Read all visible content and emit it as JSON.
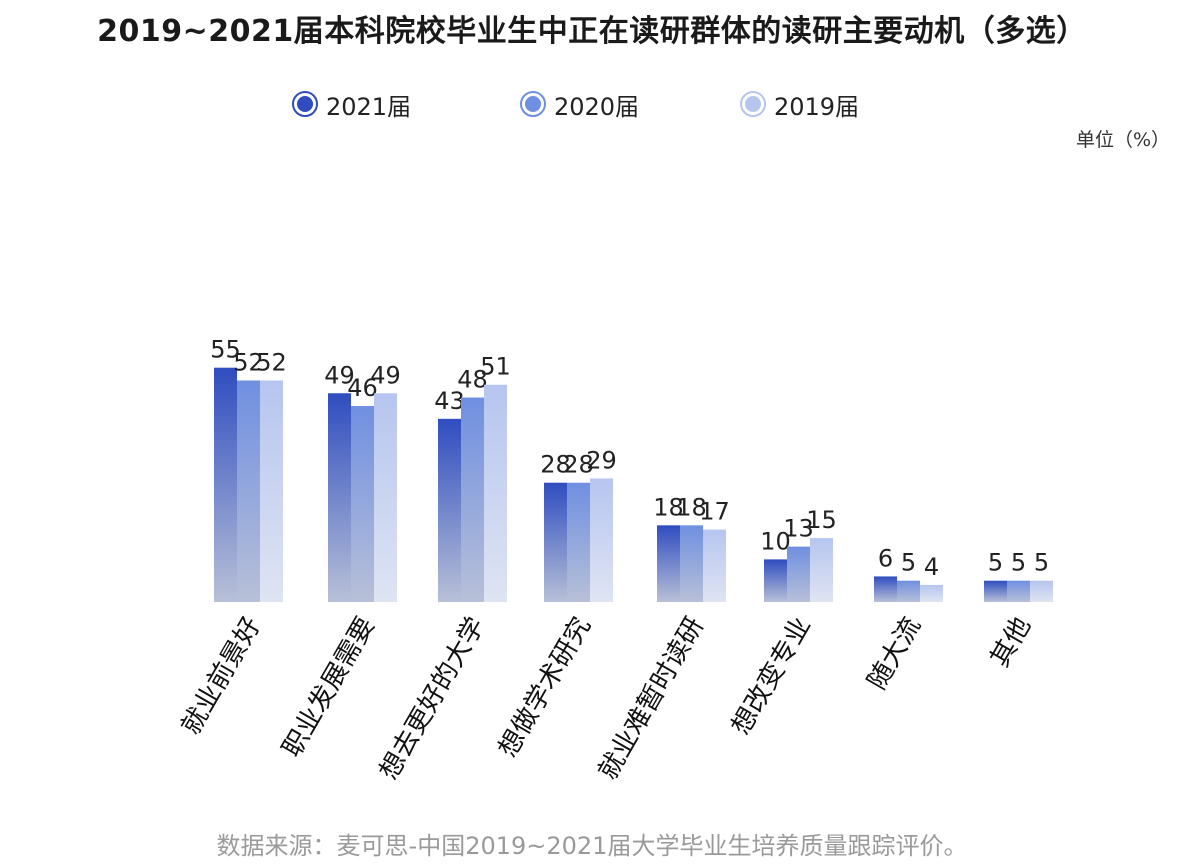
{
  "chart_data": {
    "type": "bar",
    "title": "2019~2021届本科院校毕业生中正在读研群体的读研主要动机（多选）",
    "unit_label": "单位（%）",
    "source": "数据来源：麦可思-中国2019~2021届大学毕业生培养质量跟踪评价。",
    "categories": [
      "就业前景好",
      "职业发展需要",
      "想去更好的大学",
      "想做学术研究",
      "就业难暂时读研",
      "想改变专业",
      "随大流",
      "其他"
    ],
    "series": [
      {
        "name": "2021届",
        "values": [
          55,
          49,
          43,
          28,
          18,
          10,
          6,
          5
        ],
        "color": "#2f4dbf"
      },
      {
        "name": "2020届",
        "values": [
          52,
          46,
          48,
          28,
          18,
          13,
          5,
          5
        ],
        "color": "#6f8fe0"
      },
      {
        "name": "2019届",
        "values": [
          52,
          49,
          51,
          29,
          17,
          15,
          4,
          5
        ],
        "color": "#b6c5f0"
      }
    ],
    "legend_position": "top-center",
    "grid": false,
    "ylim": [
      0,
      60
    ]
  }
}
